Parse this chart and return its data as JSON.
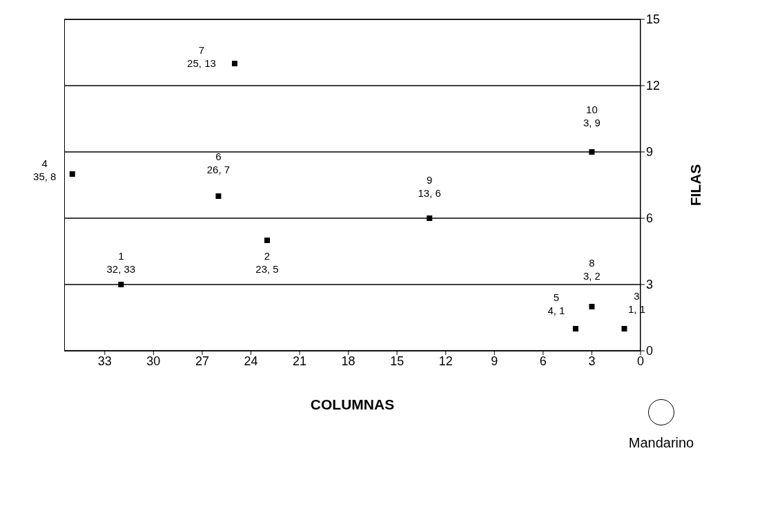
{
  "chart_data": {
    "type": "scatter",
    "xlabel": "COLUMNAS",
    "ylabel": "FILAS",
    "x": [
      32,
      23,
      1,
      35,
      4,
      26,
      25,
      3,
      13,
      3
    ],
    "series": [
      {
        "color": "#000000",
        "values": [
          3,
          5,
          1,
          8,
          1,
          7,
          13,
          2,
          6,
          9
        ]
      }
    ],
    "value_labels": [
      "1\n32, 33",
      "2\n23, 5",
      "3\n1, 1",
      "4\n35, 8",
      "5\n4, 1",
      "6\n26, 7",
      "7\n25, 13",
      "8\n3, 2",
      "9\n13, 6",
      "10\n3, 9"
    ],
    "xlim": [
      35.5,
      0
    ],
    "xticks": [
      33,
      30,
      27,
      24,
      21,
      18,
      15,
      12,
      9,
      6,
      3,
      0
    ],
    "ylim": [
      0,
      15
    ],
    "yticks": [
      0,
      3,
      6,
      9,
      12,
      15
    ],
    "grid": "y",
    "marker": "square",
    "annotations": [
      "Mandarino"
    ]
  }
}
